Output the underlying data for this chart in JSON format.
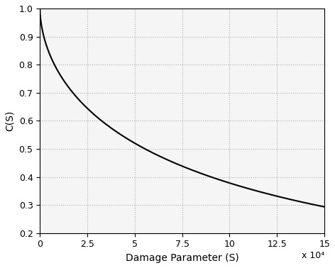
{
  "a": 0.001334,
  "b": 0.5725,
  "x_min": 0,
  "x_max": 150000,
  "y_min": 0.2,
  "y_max": 1.0,
  "xlabel": "Damage Parameter (S)",
  "ylabel": "C(S)",
  "line_color": "#000000",
  "line_width": 1.5,
  "grid_color": "#b0b0b0",
  "background_color": "#f5f5f5",
  "xticks": [
    0,
    25000,
    50000,
    75000,
    100000,
    125000,
    150000
  ],
  "xtick_labels": [
    "0",
    "2.5",
    "5",
    "7.5",
    "10",
    "12.5",
    "15"
  ],
  "yticks": [
    0.2,
    0.3,
    0.4,
    0.5,
    0.6,
    0.7,
    0.8,
    0.9,
    1.0
  ],
  "x_scale_label": "x 10⁴",
  "formula": "exp_power"
}
